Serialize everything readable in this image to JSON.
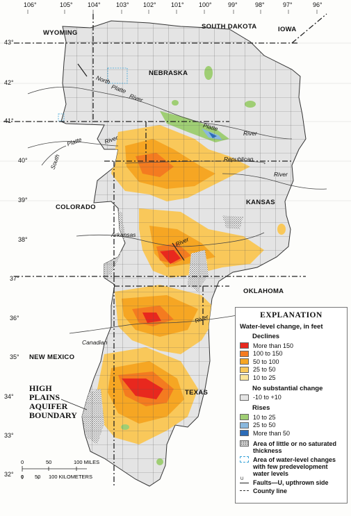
{
  "longitude_labels": [
    "106°",
    "105°",
    "104°",
    "103°",
    "102°",
    "101°",
    "100°",
    "99°",
    "98°",
    "97°",
    "96°"
  ],
  "latitude_labels": [
    "43°",
    "42°",
    "41°",
    "40°",
    "39°",
    "38°",
    "37°",
    "36°",
    "35°",
    "34°",
    "33°",
    "32°"
  ],
  "states": {
    "wyoming": "WYOMING",
    "south_dakota": "SOUTH DAKOTA",
    "iowa": "IOWA",
    "nebraska": "NEBRASKA",
    "colorado": "COLORADO",
    "kansas": "KANSAS",
    "oklahoma": "OKLAHOMA",
    "new_mexico": "NEW MEXICO",
    "texas": "TEXAS"
  },
  "rivers": {
    "north_platte": "North",
    "north_platte2": "Platte",
    "north_platte3": "River",
    "platte": "Platte",
    "platte2": "River",
    "south": "South",
    "south_platte": "Platte",
    "south_platte2": "River",
    "republican": "Republican",
    "republican_river": "River",
    "arkansas": "Arkansas",
    "arkansas_river": "River",
    "canadian": "Canadian",
    "canadian_river": "River"
  },
  "boundary_label": [
    "HIGH",
    "PLAINS",
    "AQUIFER",
    "BOUNDARY"
  ],
  "scale_bar": {
    "miles_ticks": [
      "0",
      "50",
      "100 MILES"
    ],
    "km_ticks": [
      "0",
      "50",
      "100 KILOMETERS"
    ]
  },
  "legend": {
    "title": "EXPLANATION",
    "subtitle": "Water-level change, in feet",
    "declines_header": "Declines",
    "declines": [
      {
        "label": "More than 150",
        "color": "#e8281e"
      },
      {
        "label": "100 to 150",
        "color": "#f47b20"
      },
      {
        "label": "50 to 100",
        "color": "#f6a623"
      },
      {
        "label": "25 to 50",
        "color": "#f9c85a"
      },
      {
        "label": "10 to 25",
        "color": "#fbe59a"
      }
    ],
    "no_change_header": "No substantial change",
    "no_change": {
      "label": "-10 to +10",
      "color": "#e4e4e4"
    },
    "rises_header": "Rises",
    "rises": [
      {
        "label": "10 to 25",
        "color": "#9fce74"
      },
      {
        "label": "25 to 50",
        "color": "#8ab8de"
      },
      {
        "label": "More than 50",
        "color": "#2c6cb8"
      }
    ],
    "little_saturated": "Area of little or no saturated thickness",
    "few_predevelopment": "Area of water-level changes with few predevelopment water levels",
    "faults": "Faults—U, upthrown side",
    "fault_symbol": "U",
    "county_line": "County line"
  },
  "colors": {
    "aquifer_base": "#e4e4e4",
    "county_line": "#555555",
    "state_line": "#222222",
    "river": "#444444",
    "water_blue": "#2c6cb8"
  }
}
